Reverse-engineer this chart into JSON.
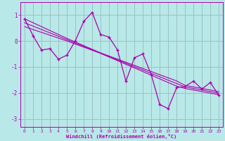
{
  "xlabel": "Windchill (Refroidissement éolien,°C)",
  "bg_color": "#b8e8e8",
  "line_color": "#aa00aa",
  "grid_color": "#88cccc",
  "x_data": [
    0,
    1,
    2,
    3,
    4,
    5,
    6,
    7,
    8,
    9,
    10,
    11,
    12,
    13,
    14,
    15,
    16,
    17,
    18,
    19,
    20,
    21,
    22,
    23
  ],
  "y_main": [
    0.85,
    0.2,
    -0.35,
    -0.3,
    -0.7,
    -0.55,
    0.0,
    0.75,
    1.1,
    0.25,
    0.15,
    -0.35,
    -1.55,
    -0.65,
    -0.5,
    -1.3,
    -2.45,
    -2.6,
    -1.8,
    -1.75,
    -1.55,
    -1.85,
    -1.6,
    -2.1
  ],
  "y_reg": [
    0.7,
    0.57,
    0.44,
    0.31,
    0.18,
    0.05,
    -0.08,
    -0.21,
    -0.34,
    -0.47,
    -0.6,
    -0.73,
    -0.86,
    -0.99,
    -1.12,
    -1.25,
    -1.38,
    -1.51,
    -1.64,
    -1.77,
    -1.83,
    -1.89,
    -1.95,
    -2.01
  ],
  "y_upper": [
    0.55,
    0.44,
    0.33,
    0.22,
    0.11,
    0.0,
    -0.12,
    -0.24,
    -0.36,
    -0.48,
    -0.62,
    -0.76,
    -0.9,
    -1.04,
    -1.18,
    -1.32,
    -1.46,
    -1.6,
    -1.74,
    -1.83,
    -1.89,
    -1.95,
    -2.01,
    -2.07
  ],
  "y_lower": [
    0.85,
    0.7,
    0.55,
    0.4,
    0.25,
    0.1,
    -0.04,
    -0.18,
    -0.32,
    -0.46,
    -0.58,
    -0.7,
    -0.82,
    -0.94,
    -1.06,
    -1.18,
    -1.3,
    -1.42,
    -1.54,
    -1.71,
    -1.77,
    -1.83,
    -1.89,
    -1.95
  ],
  "xlim": [
    -0.5,
    23.5
  ],
  "ylim": [
    -3.3,
    1.5
  ],
  "yticks": [
    -3,
    -2,
    -1,
    0,
    1
  ],
  "xticks": [
    0,
    1,
    2,
    3,
    4,
    5,
    6,
    7,
    8,
    9,
    10,
    11,
    12,
    13,
    14,
    15,
    16,
    17,
    18,
    19,
    20,
    21,
    22,
    23
  ]
}
